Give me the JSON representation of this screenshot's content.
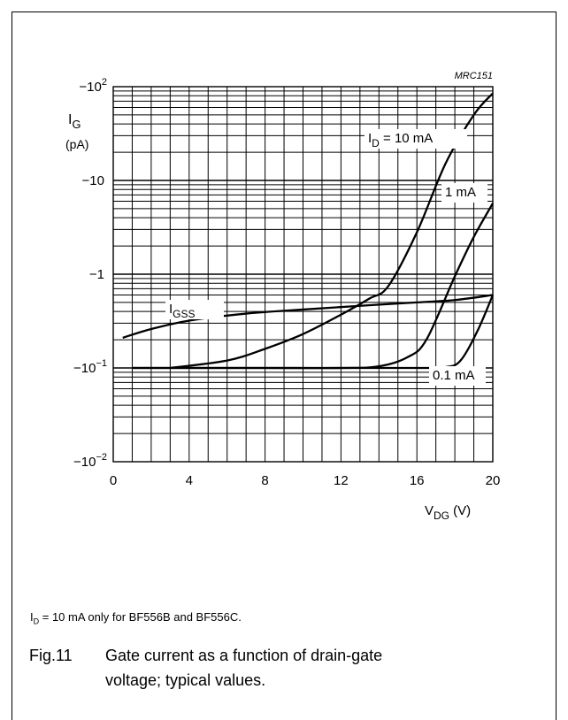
{
  "chart_data": {
    "type": "line",
    "code": "MRC151",
    "xlabel_main": "V",
    "xlabel_sub": "DG",
    "xlabel_unit": "(V)",
    "ylabel_main": "I",
    "ylabel_sub": "G",
    "ylabel_unit": "(pA)",
    "xlim": [
      0,
      20
    ],
    "x_ticks": [
      "0",
      "4",
      "8",
      "12",
      "16",
      "20"
    ],
    "y_scale": "log",
    "y_ticks": [
      {
        "label": "−10",
        "sup": "2"
      },
      {
        "label": "−10",
        "sup": ""
      },
      {
        "label": "−1",
        "sup": ""
      },
      {
        "label": "−10",
        "sup": "−1"
      },
      {
        "label": "−10",
        "sup": "−2"
      }
    ],
    "grid": true,
    "series": [
      {
        "name_main": "I",
        "name_sub": "D",
        "name_rest": " = 10 mA",
        "x": [
          3,
          6,
          8,
          10,
          12,
          13.5,
          14.5,
          16,
          17.5,
          19,
          20
        ],
        "y": [
          0.1,
          0.12,
          0.16,
          0.23,
          0.37,
          0.55,
          0.75,
          2.8,
          15,
          50,
          85
        ]
      },
      {
        "name_main": "",
        "name_sub": "",
        "name_rest": "1 mA",
        "x": [
          1,
          4,
          8,
          12,
          14,
          15.5,
          16.5,
          18,
          19,
          20
        ],
        "y": [
          0.1,
          0.1,
          0.1,
          0.1,
          0.104,
          0.13,
          0.2,
          0.95,
          2.5,
          5.7
        ]
      },
      {
        "name_main": "",
        "name_sub": "",
        "name_rest": "0.1 mA",
        "x": [
          1,
          4,
          8,
          12,
          16,
          17.5,
          18.3,
          19.2,
          20
        ],
        "y": [
          0.1,
          0.1,
          0.1,
          0.1,
          0.1,
          0.102,
          0.12,
          0.25,
          0.6
        ]
      },
      {
        "name_main": "I",
        "name_sub": "GSS",
        "name_rest": "",
        "x": [
          0.5,
          2,
          4,
          7,
          10,
          13,
          16,
          18,
          20
        ],
        "y": [
          0.21,
          0.26,
          0.32,
          0.38,
          0.42,
          0.46,
          0.5,
          0.53,
          0.6
        ]
      }
    ]
  },
  "note": {
    "main": "I",
    "sub": "D",
    "rest": " = 10 mA only for BF556B and BF556C."
  },
  "caption": {
    "number": "Fig.11",
    "line1": "Gate current as a function of drain-gate",
    "line2": "voltage; typical values."
  }
}
